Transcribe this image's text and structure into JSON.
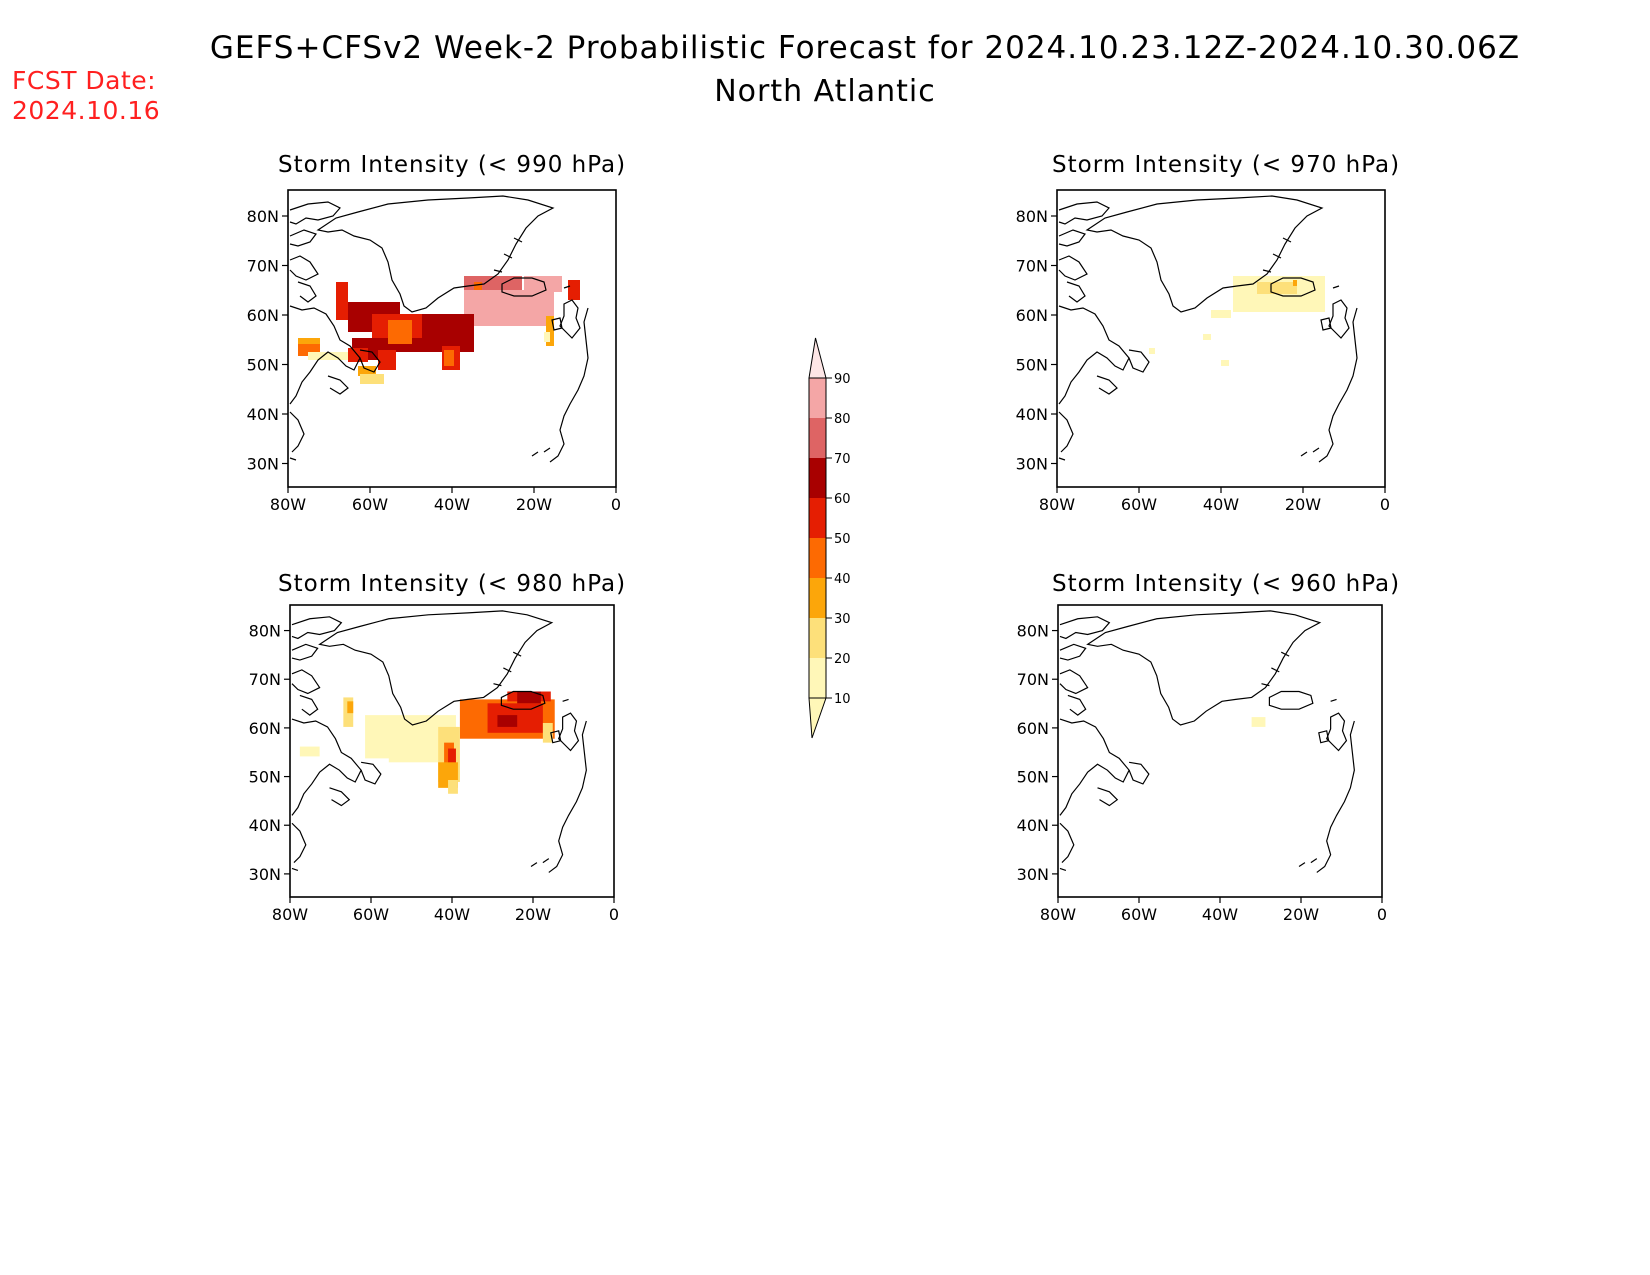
{
  "header": {
    "title": "GEFS+CFSv2 Week-2 Probabilistic Forecast for 2024.10.23.12Z-2024.10.30.06Z",
    "subtitle": "North Atlantic",
    "fcst_label": "FCST Date:",
    "fcst_date": "2024.10.16",
    "fcst_color": "#ff2020"
  },
  "panels": [
    {
      "title": "Storm Intensity (< 990 hPa)"
    },
    {
      "title": "Storm Intensity (< 970 hPa)"
    },
    {
      "title": "Storm Intensity (< 980 hPa)"
    },
    {
      "title": "Storm Intensity (< 960 hPa)"
    }
  ],
  "axes": {
    "lat_labels": [
      "80N",
      "70N",
      "60N",
      "50N",
      "40N",
      "30N"
    ],
    "lon_labels": [
      "80W",
      "60W",
      "40W",
      "20W",
      "0"
    ]
  },
  "colorbar": {
    "levels": [
      "10",
      "20",
      "30",
      "40",
      "50",
      "60",
      "70",
      "80",
      "90"
    ],
    "colors": [
      "#fff7b8",
      "#fde07a",
      "#fca60a",
      "#fd6a02",
      "#e51e02",
      "#a80000",
      "#de6464",
      "#f4a6a6",
      "#fde6e6"
    ]
  }
}
